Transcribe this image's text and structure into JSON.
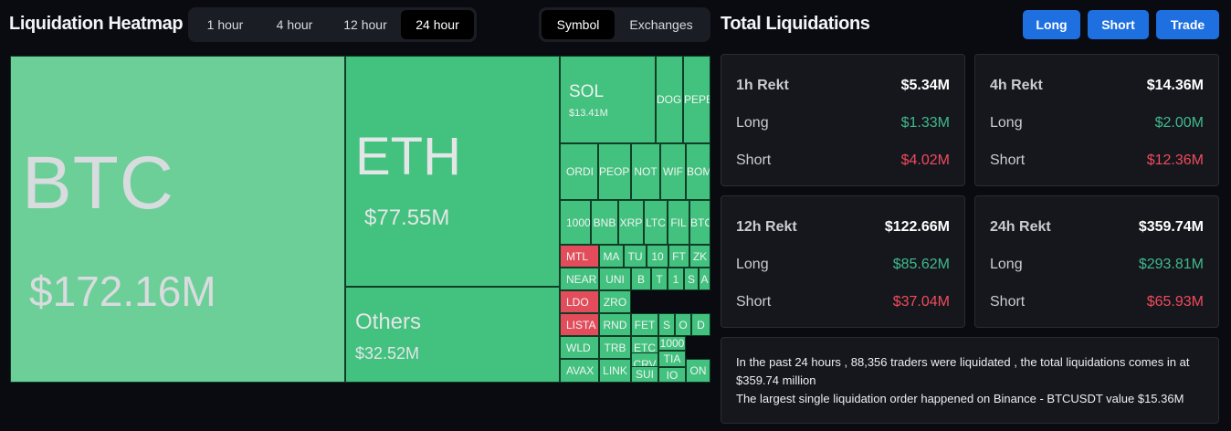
{
  "header": {
    "heatmap_title": "Liquidation Heatmap",
    "time_tabs": [
      "1 hour",
      "4 hour",
      "12 hour",
      "24 hour"
    ],
    "active_time_tab": "24 hour",
    "view_tabs": [
      "Symbol",
      "Exchanges"
    ],
    "active_view_tab": "Symbol",
    "totals_title": "Total Liquidations",
    "buttons": {
      "long": "Long",
      "short": "Short",
      "trade": "Trade"
    }
  },
  "heatmap": {
    "btc": {
      "symbol": "BTC",
      "value": "$172.16M"
    },
    "eth": {
      "symbol": "ETH",
      "value": "$77.55M"
    },
    "others": {
      "symbol": "Others",
      "value": "$32.52M"
    },
    "sol": {
      "symbol": "SOL",
      "value": "$13.41M"
    },
    "small_tiles": [
      "DOGE",
      "PEPE",
      "ORDI",
      "PEOPLE",
      "NOT",
      "WIF",
      "BOME",
      "1000",
      "BNB",
      "XRP",
      "LTC",
      "FIL",
      "BTC",
      "MTL",
      "MA",
      "TU",
      "10",
      "FT",
      "ZK",
      "NEAR",
      "UNI",
      "B",
      "T",
      "1",
      "S",
      "A",
      "LDO",
      "ZRO",
      "LISTA",
      "RND",
      "FET",
      "S",
      "O",
      "D",
      "WLD",
      "ETC",
      "TRB",
      "CRV",
      "1000",
      "AVAX",
      "LINK",
      "SUI",
      "TIA",
      "IO",
      "ON"
    ],
    "colors": {
      "green": "#43c17f",
      "light_green": "#6dcf98",
      "red": "#e34d5b"
    }
  },
  "rekt": [
    {
      "label": "1h Rekt",
      "total": "$5.34M",
      "long_label": "Long",
      "long": "$1.33M",
      "short_label": "Short",
      "short": "$4.02M"
    },
    {
      "label": "4h Rekt",
      "total": "$14.36M",
      "long_label": "Long",
      "long": "$2.00M",
      "short_label": "Short",
      "short": "$12.36M"
    },
    {
      "label": "12h Rekt",
      "total": "$122.66M",
      "long_label": "Long",
      "long": "$85.62M",
      "short_label": "Short",
      "short": "$37.04M"
    },
    {
      "label": "24h Rekt",
      "total": "$359.74M",
      "long_label": "Long",
      "long": "$293.81M",
      "short_label": "Short",
      "short": "$65.93M"
    }
  ],
  "summary": {
    "line1": "In the past 24 hours , 88,356 traders were liquidated , the total liquidations comes in at $359.74 million",
    "line2": "The largest single liquidation order happened on Binance - BTCUSDT value $15.36M"
  }
}
